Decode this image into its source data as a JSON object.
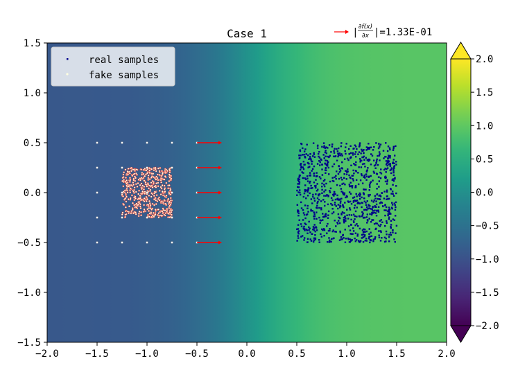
{
  "chart_data": {
    "type": "scatter",
    "title": "Case 1",
    "xlim": [
      -2.0,
      2.0
    ],
    "ylim": [
      -1.5,
      1.5
    ],
    "x_ticks": [
      "−2.0",
      "−1.5",
      "−1.0",
      "−0.5",
      "0.0",
      "0.5",
      "1.0",
      "1.5",
      "2.0"
    ],
    "y_ticks": [
      "−1.5",
      "−1.0",
      "−0.5",
      "0.0",
      "0.5",
      "1.0",
      "1.5"
    ],
    "x_tick_values": [
      -2.0,
      -1.5,
      -1.0,
      -0.5,
      0.0,
      0.5,
      1.0,
      1.5,
      2.0
    ],
    "y_tick_values": [
      -1.5,
      -1.0,
      -0.5,
      0.0,
      0.5,
      1.0,
      1.5
    ],
    "legend": {
      "position": "upper-left",
      "entries": [
        {
          "label": "real samples",
          "color": "#00008b"
        },
        {
          "label": "fake samples",
          "color": "#ffffe0"
        }
      ]
    },
    "gradient_legend": {
      "label_numerator": "∂f(x)",
      "label_denominator": "∂x",
      "label_prefix": "|",
      "label_suffix": "|=1.33E-01",
      "arrow_color": "#ff0000"
    },
    "colorbar": {
      "colormap": "viridis",
      "range": [
        -2.0,
        2.0
      ],
      "ticks": [
        "2.0",
        "1.5",
        "1.0",
        "0.5",
        "0.0",
        "−0.5",
        "−1.0",
        "−1.5",
        "−2.0"
      ],
      "tick_values": [
        2.0,
        1.5,
        1.0,
        0.5,
        0.0,
        -0.5,
        -1.0,
        -1.5,
        -2.0
      ],
      "extend": "both"
    },
    "background_field": {
      "description_values": "f(x) sigmoid-like in x",
      "left_value": -0.9,
      "right_value": 0.95,
      "transition_center_x": 0.0,
      "transition_width": 0.3
    },
    "real_samples": {
      "distribution": "uniform",
      "x_range": [
        0.5,
        1.5
      ],
      "y_range": [
        -0.5,
        0.5
      ],
      "count": 1000,
      "color": "#00008b"
    },
    "fake_samples": {
      "distribution": "uniform",
      "x_range": [
        -1.25,
        -0.75
      ],
      "y_range": [
        -0.25,
        0.25
      ],
      "count": 500,
      "color": "#ffffe0",
      "edge_color": "#d62728"
    },
    "grid_points": {
      "x": [
        -1.5,
        -1.25,
        -1.0,
        -0.75,
        -0.5
      ],
      "y": [
        -0.5,
        -0.25,
        0.0,
        0.25,
        0.5
      ]
    },
    "gradient_arrows": {
      "x": -0.5,
      "y": [
        -0.5,
        -0.25,
        0.0,
        0.25,
        0.5
      ],
      "dx": 0.25,
      "color": "#ff0000"
    }
  }
}
